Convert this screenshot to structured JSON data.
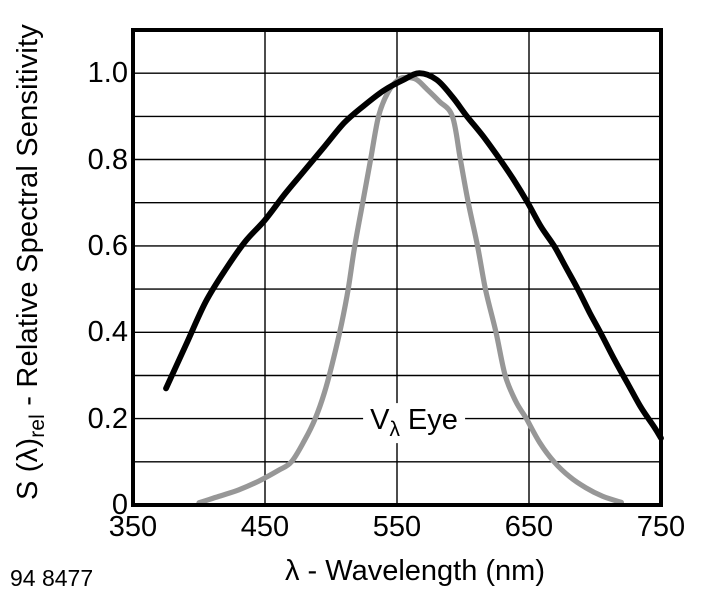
{
  "figure": {
    "footer_number": "94 8477"
  },
  "x_axis": {
    "title": "λ - Wavelength (nm)",
    "ticks": [
      {
        "v": 350,
        "label": "350"
      },
      {
        "v": 450,
        "label": "450"
      },
      {
        "v": 550,
        "label": "550"
      },
      {
        "v": 650,
        "label": "650"
      },
      {
        "v": 750,
        "label": "750"
      }
    ]
  },
  "y_axis": {
    "title_prefix": "S (λ)",
    "title_subscript": "rel",
    "title_suffix": " - Relative Spectral Sensitivity",
    "ticks": [
      {
        "v": 0,
        "label": "0"
      },
      {
        "v": 0.2,
        "label": "0.2"
      },
      {
        "v": 0.4,
        "label": "0.4"
      },
      {
        "v": 0.6,
        "label": "0.6"
      },
      {
        "v": 0.8,
        "label": "0.8"
      },
      {
        "v": 1.0,
        "label": "1.0"
      }
    ]
  },
  "annotation": {
    "prefix": "V",
    "subscript": "λ",
    "suffix": " Eye"
  },
  "colors": {
    "photodiode_curve": "#000000",
    "eye_curve": "#979797",
    "grid": "#000000",
    "border": "#000000",
    "background": "#ffffff"
  },
  "chart_data": {
    "type": "line",
    "title": "",
    "xlabel": "λ - Wavelength (nm)",
    "ylabel": "S (λ)rel - Relative Spectral Sensitivity",
    "xlim": [
      350,
      750
    ],
    "ylim": [
      0,
      1.1
    ],
    "grid": true,
    "x_gridlines": [
      450,
      550,
      650
    ],
    "y_gridlines": [
      0.1,
      0.2,
      0.3,
      0.4,
      0.5,
      0.6,
      0.7,
      0.8,
      0.9,
      1.0
    ],
    "legend_position": "none",
    "annotation_anchor": {
      "wavelength_nm": 563,
      "sensitivity": 0.195
    },
    "series": [
      {
        "name": "photodiode-spectral-sensitivity",
        "color": "#000000",
        "stroke_width": 5.8,
        "points": [
          [
            375,
            0.27
          ],
          [
            390,
            0.37
          ],
          [
            405,
            0.47
          ],
          [
            420,
            0.545
          ],
          [
            435,
            0.61
          ],
          [
            450,
            0.66
          ],
          [
            465,
            0.72
          ],
          [
            480,
            0.775
          ],
          [
            495,
            0.83
          ],
          [
            510,
            0.885
          ],
          [
            525,
            0.925
          ],
          [
            540,
            0.96
          ],
          [
            555,
            0.985
          ],
          [
            567,
            1.0
          ],
          [
            580,
            0.985
          ],
          [
            592,
            0.945
          ],
          [
            603,
            0.9
          ],
          [
            615,
            0.855
          ],
          [
            628,
            0.8
          ],
          [
            638,
            0.755
          ],
          [
            649,
            0.7
          ],
          [
            659,
            0.645
          ],
          [
            669,
            0.6
          ],
          [
            678,
            0.55
          ],
          [
            687,
            0.5
          ],
          [
            696,
            0.445
          ],
          [
            704,
            0.4
          ],
          [
            715,
            0.335
          ],
          [
            725,
            0.28
          ],
          [
            735,
            0.225
          ],
          [
            745,
            0.18
          ],
          [
            750,
            0.155
          ]
        ]
      },
      {
        "name": "V-lambda-eye-sensitivity",
        "color": "#979797",
        "stroke_width": 5.2,
        "points": [
          [
            400,
            0.005
          ],
          [
            415,
            0.02
          ],
          [
            430,
            0.035
          ],
          [
            445,
            0.055
          ],
          [
            460,
            0.08
          ],
          [
            470,
            0.1
          ],
          [
            480,
            0.15
          ],
          [
            488,
            0.2
          ],
          [
            495,
            0.26
          ],
          [
            502,
            0.34
          ],
          [
            508,
            0.42
          ],
          [
            513,
            0.5
          ],
          [
            518,
            0.6
          ],
          [
            524,
            0.7
          ],
          [
            530,
            0.8
          ],
          [
            536,
            0.9
          ],
          [
            543,
            0.955
          ],
          [
            551,
            0.985
          ],
          [
            558,
            0.99
          ],
          [
            565,
            0.985
          ],
          [
            572,
            0.965
          ],
          [
            582,
            0.935
          ],
          [
            592,
            0.9
          ],
          [
            598,
            0.8
          ],
          [
            604,
            0.7
          ],
          [
            611,
            0.6
          ],
          [
            617,
            0.5
          ],
          [
            625,
            0.4
          ],
          [
            632,
            0.3
          ],
          [
            640,
            0.24
          ],
          [
            648,
            0.2
          ],
          [
            658,
            0.145
          ],
          [
            669,
            0.1
          ],
          [
            681,
            0.065
          ],
          [
            693,
            0.04
          ],
          [
            706,
            0.02
          ],
          [
            720,
            0.006
          ]
        ]
      }
    ]
  }
}
